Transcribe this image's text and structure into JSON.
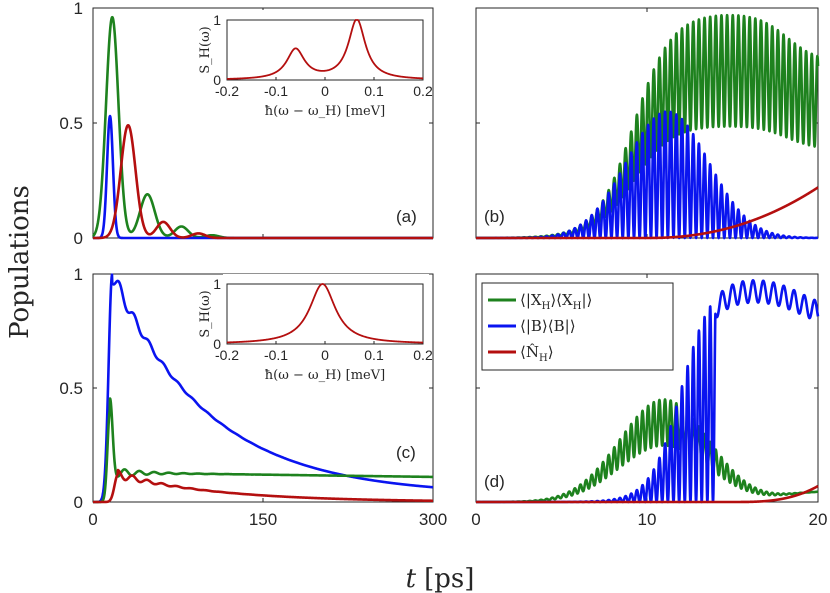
{
  "figure": {
    "ylabel": "Populations",
    "xlabel_t": "t",
    "xlabel_unit": "[ps]"
  },
  "colors": {
    "green": "#1e821e",
    "blue": "#0a14f0",
    "red": "#b40f0f",
    "axis": "#262626"
  },
  "legend": {
    "entries": [
      {
        "label": "⟨|X_H⟩⟨X_H|⟩",
        "text": "⟨|X",
        "sub": "H",
        "mid": "⟩⟨X",
        "sub2": "H",
        "end": "|⟩",
        "color": "#1e821e"
      },
      {
        "label": "⟨|B⟩⟨B|⟩",
        "text": "⟨|B⟩⟨B|⟩",
        "color": "#0a14f0"
      },
      {
        "label": "⟨N̂_H⟩",
        "text": "⟨N̂",
        "sub": "H",
        "end": "⟩",
        "color": "#b40f0f"
      }
    ]
  },
  "inset": {
    "ylabel": "S_H(ω)",
    "xlabel": "ħ(ω − ω_H) [meV]",
    "xticks": [
      "-0.2",
      "-0.1",
      "0",
      "0.1",
      "0.2"
    ],
    "yticks": [
      "0",
      "1"
    ]
  },
  "chart_data": [
    {
      "panel": "(a)",
      "type": "line",
      "xlim": [
        0,
        300
      ],
      "ylim": [
        0,
        1
      ],
      "xticks": [
        0,
        150,
        300
      ],
      "yticks": [
        "0",
        "0.5",
        "1"
      ],
      "series": [
        {
          "color": "green",
          "peaks": [
            [
              17,
              0.96
            ],
            [
              48,
              0.19
            ],
            [
              78,
              0.05
            ],
            [
              105,
              0.01
            ]
          ]
        },
        {
          "color": "blue",
          "peaks": [
            [
              15,
              0.53
            ]
          ]
        },
        {
          "color": "red",
          "peaks": [
            [
              31,
              0.49
            ],
            [
              62,
              0.07
            ],
            [
              93,
              0.02
            ]
          ]
        }
      ],
      "inset": {
        "type": "line",
        "xlim": [
          -0.2,
          0.2
        ],
        "ylim": [
          0,
          1
        ],
        "peaks": [
          [
            -0.06,
            0.5
          ],
          [
            0.065,
            1.0
          ]
        ]
      }
    },
    {
      "panel": "(b)",
      "type": "line",
      "xlim": [
        0,
        20
      ],
      "ylim": [
        0,
        1
      ],
      "xticks": [
        0,
        10,
        20
      ],
      "yticks": [],
      "series": [
        {
          "color": "green",
          "envelope_max": 0.98,
          "peak_x": 15.5,
          "oscillation_period_ps": 0.33
        },
        {
          "color": "blue",
          "envelope_max": 0.55,
          "peak_x": 11.0,
          "oscillation_period_ps": 0.33
        },
        {
          "color": "red",
          "end_value": 0.22
        }
      ]
    },
    {
      "panel": "(c)",
      "type": "line",
      "xlim": [
        0,
        300
      ],
      "ylim": [
        0,
        1
      ],
      "xticks": [
        "0",
        "150",
        "300"
      ],
      "yticks": [
        "0",
        "0.5",
        "1"
      ],
      "series": [
        {
          "color": "blue",
          "peak": [
            17,
            1.0
          ],
          "decay_to": [
            300,
            0.02
          ]
        },
        {
          "color": "green",
          "plateau": 0.14,
          "end_value": 0.12
        },
        {
          "color": "red",
          "peak": [
            22,
            0.12
          ],
          "decay_to": [
            300,
            0.0
          ]
        }
      ],
      "inset": {
        "type": "line",
        "xlim": [
          -0.2,
          0.2
        ],
        "ylim": [
          0,
          1
        ],
        "peaks": [
          [
            -0.005,
            1.0
          ]
        ]
      }
    },
    {
      "panel": "(d)",
      "type": "line",
      "xlim": [
        0,
        20
      ],
      "ylim": [
        0,
        1
      ],
      "xticks": [
        "0",
        "10",
        "20"
      ],
      "yticks": [],
      "series": [
        {
          "color": "green",
          "envelope_max": 0.45,
          "peak_x": 11.0,
          "end_value": 0.05
        },
        {
          "color": "blue",
          "envelope_max": 1.0,
          "plateau": 0.92,
          "end_value": 0.84
        },
        {
          "color": "red",
          "end_value": 0.07
        }
      ]
    }
  ]
}
